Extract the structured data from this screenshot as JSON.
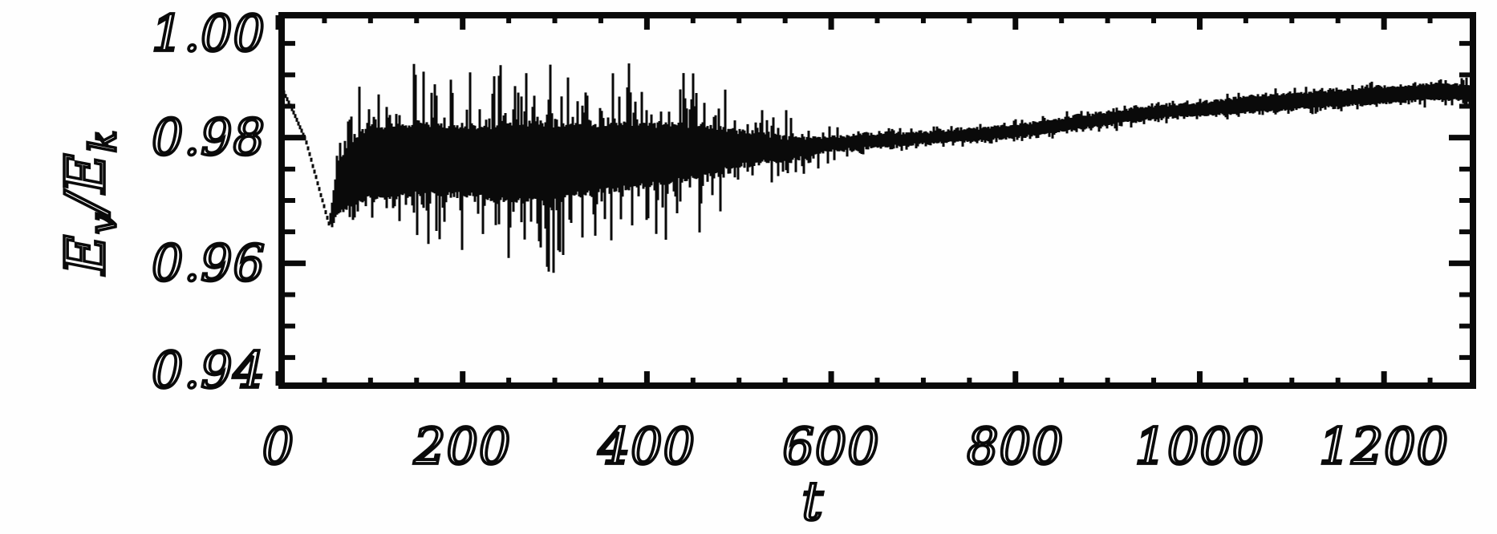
{
  "figure": {
    "background": "#fefefe",
    "ink": "#0a0a0a"
  },
  "chart_data": {
    "type": "line",
    "title": "",
    "xlabel": "t",
    "ylabel": "E_v/E_k",
    "ylabel_parts": {
      "num_base": "E",
      "num_sub": "v",
      "divider": "/",
      "den_base": "E",
      "den_sub": "k"
    },
    "xlim": [
      0,
      1300
    ],
    "ylim": [
      0.94,
      1.0
    ],
    "x_major_ticks": [
      0,
      200,
      400,
      600,
      800,
      1000,
      1200
    ],
    "x_tick_labels": [
      "0",
      "200",
      "400",
      "600",
      "800",
      "1000",
      "1200"
    ],
    "x_minor_step": 50,
    "y_major_ticks": [
      0.94,
      0.96,
      0.98,
      1.0
    ],
    "y_tick_labels": [
      "0.94",
      "0.96",
      "0.98",
      "1.00"
    ],
    "y_minor_step": 0.005,
    "grid": false,
    "legend": null,
    "axis_style": "boxed frame, ticks pointing inward on all four sides, italic serif vector-font labels",
    "series": [
      {
        "name": "E_v/E_k",
        "description": "Noisy energy-ratio time series: smooth decline 0.989->0.966 for t<60, strongly oscillating band (spikes 0.957-0.998) for 60<t<550, noise decays 550<t<650, then slow smooth rise to ~0.988 with small fuzz by t=1300",
        "samples_format": [
          "t",
          "spike_low",
          "core_low",
          "core_high",
          "spike_high"
        ],
        "samples": [
          [
            0,
            0.989,
            0.989,
            0.989,
            0.989
          ],
          [
            15,
            0.9845,
            0.9845,
            0.9845,
            0.9845
          ],
          [
            30,
            0.9795,
            0.9795,
            0.9795,
            0.9795
          ],
          [
            45,
            0.9715,
            0.9715,
            0.9715,
            0.9715
          ],
          [
            55,
            0.966,
            0.966,
            0.9665,
            0.9665
          ],
          [
            65,
            0.9645,
            0.968,
            0.976,
            0.986
          ],
          [
            80,
            0.9635,
            0.9695,
            0.9795,
            0.988
          ],
          [
            100,
            0.962,
            0.9705,
            0.9815,
            0.99
          ],
          [
            125,
            0.9605,
            0.9705,
            0.982,
            0.9915
          ],
          [
            150,
            0.96,
            0.971,
            0.982,
            0.9925
          ],
          [
            175,
            0.9625,
            0.971,
            0.982,
            0.9905
          ],
          [
            200,
            0.9615,
            0.971,
            0.9815,
            0.9895
          ],
          [
            225,
            0.96,
            0.9705,
            0.9815,
            0.992
          ],
          [
            250,
            0.959,
            0.97,
            0.982,
            0.993
          ],
          [
            275,
            0.958,
            0.97,
            0.982,
            0.9945
          ],
          [
            300,
            0.957,
            0.9705,
            0.982,
            0.9975
          ],
          [
            325,
            0.9605,
            0.971,
            0.982,
            0.992
          ],
          [
            350,
            0.962,
            0.9715,
            0.982,
            0.9935
          ],
          [
            375,
            0.9625,
            0.972,
            0.982,
            0.9915
          ],
          [
            400,
            0.9625,
            0.9725,
            0.982,
            0.995
          ],
          [
            425,
            0.9635,
            0.973,
            0.982,
            0.9895
          ],
          [
            450,
            0.9645,
            0.9735,
            0.982,
            0.9965
          ],
          [
            475,
            0.967,
            0.9745,
            0.9815,
            0.988
          ],
          [
            500,
            0.9685,
            0.9755,
            0.981,
            0.9875
          ],
          [
            525,
            0.97,
            0.976,
            0.9805,
            0.9855
          ],
          [
            550,
            0.9715,
            0.9765,
            0.98,
            0.9845
          ],
          [
            575,
            0.9735,
            0.977,
            0.98,
            0.9825
          ],
          [
            600,
            0.976,
            0.978,
            0.98,
            0.9818
          ],
          [
            650,
            0.9775,
            0.9785,
            0.9805,
            0.9815
          ],
          [
            700,
            0.978,
            0.979,
            0.9808,
            0.9818
          ],
          [
            750,
            0.9785,
            0.9795,
            0.9813,
            0.9823
          ],
          [
            800,
            0.979,
            0.98,
            0.982,
            0.983
          ],
          [
            850,
            0.98,
            0.981,
            0.983,
            0.984
          ],
          [
            900,
            0.981,
            0.982,
            0.984,
            0.985
          ],
          [
            950,
            0.982,
            0.983,
            0.985,
            0.986
          ],
          [
            1000,
            0.9825,
            0.9835,
            0.9855,
            0.9865
          ],
          [
            1050,
            0.983,
            0.984,
            0.9865,
            0.9875
          ],
          [
            1100,
            0.9835,
            0.9845,
            0.987,
            0.988
          ],
          [
            1150,
            0.984,
            0.985,
            0.9875,
            0.9885
          ],
          [
            1200,
            0.9845,
            0.9855,
            0.988,
            0.989
          ],
          [
            1250,
            0.985,
            0.986,
            0.9885,
            0.9895
          ],
          [
            1300,
            0.985,
            0.986,
            0.9885,
            0.99
          ]
        ]
      }
    ]
  }
}
